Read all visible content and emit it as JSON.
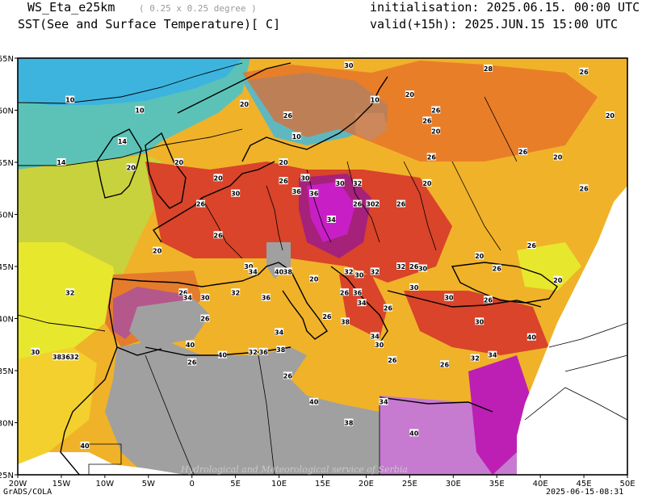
{
  "header": {
    "model": "WS_Eta_e25km",
    "resolution": "( 0.25 x 0.25 degree )",
    "field": "SST(See and Surface Temperature)[ C]",
    "init": "initialisation: 2025.06.15. 00:00 UTC",
    "valid": "valid(+15h): 2025.JUN.15 15:00 UTC"
  },
  "footer": {
    "left": "GrADS/COLA",
    "right": "2025-06-15-08:31",
    "watermark": "Hydrological and Meteorological service of Serbia"
  },
  "axes": {
    "lon_ticks": [
      "20W",
      "15W",
      "10W",
      "5W",
      "0",
      "5E",
      "10E",
      "15E",
      "20E",
      "25E",
      "30E",
      "35E",
      "40E",
      "45E",
      "50E"
    ],
    "lat_ticks": [
      "65N",
      "60N",
      "55N",
      "50N",
      "45N",
      "40N",
      "35N",
      "30N",
      "25N"
    ]
  },
  "contour_labels": [
    {
      "text": "10",
      "lon": -14,
      "lat": 61
    },
    {
      "text": "10",
      "lon": -6,
      "lat": 60
    },
    {
      "text": "14",
      "lon": -15,
      "lat": 55
    },
    {
      "text": "14",
      "lon": -8,
      "lat": 57
    },
    {
      "text": "20",
      "lon": -7,
      "lat": 54.5
    },
    {
      "text": "20",
      "lon": -1.5,
      "lat": 55
    },
    {
      "text": "20",
      "lon": 3,
      "lat": 53.5
    },
    {
      "text": "20",
      "lon": -4,
      "lat": 46.5
    },
    {
      "text": "26",
      "lon": 1,
      "lat": 51
    },
    {
      "text": "30",
      "lon": 5,
      "lat": 52
    },
    {
      "text": "26",
      "lon": 3,
      "lat": 48
    },
    {
      "text": "20",
      "lon": -20,
      "lat": 38
    },
    {
      "text": "30",
      "lon": -18,
      "lat": 36.8
    },
    {
      "text": "32",
      "lon": -14,
      "lat": 42.5
    },
    {
      "text": "26",
      "lon": -1,
      "lat": 42.5
    },
    {
      "text": "34",
      "lon": -0.5,
      "lat": 42
    },
    {
      "text": "30",
      "lon": 1.5,
      "lat": 42
    },
    {
      "text": "26",
      "lon": 1.5,
      "lat": 40
    },
    {
      "text": "40",
      "lon": -0.2,
      "lat": 37.5
    },
    {
      "text": "38",
      "lon": -15.5,
      "lat": 36.3
    },
    {
      "text": "36",
      "lon": -14.5,
      "lat": 36.3
    },
    {
      "text": "32",
      "lon": -13.5,
      "lat": 36.3
    },
    {
      "text": "26",
      "lon": 0,
      "lat": 35.8
    },
    {
      "text": "40",
      "lon": 3.5,
      "lat": 36.5
    },
    {
      "text": "32",
      "lon": 7,
      "lat": 36.8
    },
    {
      "text": "36",
      "lon": 8.2,
      "lat": 36.8
    },
    {
      "text": "38",
      "lon": 10.2,
      "lat": 37
    },
    {
      "text": "40",
      "lon": -12.3,
      "lat": 27.8
    },
    {
      "text": "26",
      "lon": 11,
      "lat": 34.5
    },
    {
      "text": "40",
      "lon": 14,
      "lat": 32
    },
    {
      "text": "34",
      "lon": 22,
      "lat": 32
    },
    {
      "text": "38",
      "lon": 18,
      "lat": 30
    },
    {
      "text": "40",
      "lon": 25.5,
      "lat": 29
    },
    {
      "text": "34",
      "lon": 10,
      "lat": 38.7
    },
    {
      "text": "26",
      "lon": 15.5,
      "lat": 40.2
    },
    {
      "text": "38",
      "lon": 17.6,
      "lat": 39.7
    },
    {
      "text": "36",
      "lon": 8.5,
      "lat": 42
    },
    {
      "text": "32",
      "lon": 5,
      "lat": 42.5
    },
    {
      "text": "30",
      "lon": 6.5,
      "lat": 45
    },
    {
      "text": "34",
      "lon": 7,
      "lat": 44.5
    },
    {
      "text": "40",
      "lon": 10,
      "lat": 44.5
    },
    {
      "text": "38",
      "lon": 11,
      "lat": 44.5
    },
    {
      "text": "20",
      "lon": 14,
      "lat": 43.8
    },
    {
      "text": "26",
      "lon": 17.5,
      "lat": 42.5
    },
    {
      "text": "36",
      "lon": 19,
      "lat": 42.5
    },
    {
      "text": "32",
      "lon": 18,
      "lat": 44.5
    },
    {
      "text": "30",
      "lon": 19.2,
      "lat": 44.2
    },
    {
      "text": "32",
      "lon": 21,
      "lat": 44.5
    },
    {
      "text": "32",
      "lon": 24,
      "lat": 45
    },
    {
      "text": "26",
      "lon": 25.5,
      "lat": 45
    },
    {
      "text": "30",
      "lon": 26.5,
      "lat": 44.8
    },
    {
      "text": "30",
      "lon": 25.5,
      "lat": 43
    },
    {
      "text": "26",
      "lon": 22.5,
      "lat": 41
    },
    {
      "text": "34",
      "lon": 19.5,
      "lat": 41.5
    },
    {
      "text": "34",
      "lon": 21,
      "lat": 38.3
    },
    {
      "text": "30",
      "lon": 21.5,
      "lat": 37.5
    },
    {
      "text": "26",
      "lon": 23,
      "lat": 36
    },
    {
      "text": "26",
      "lon": 29,
      "lat": 35.6
    },
    {
      "text": "32",
      "lon": 32.5,
      "lat": 36.2
    },
    {
      "text": "34",
      "lon": 34.5,
      "lat": 36.5
    },
    {
      "text": "40",
      "lon": 39,
      "lat": 38.2
    },
    {
      "text": "30",
      "lon": 33,
      "lat": 39.7
    },
    {
      "text": "26",
      "lon": 34,
      "lat": 41.8
    },
    {
      "text": "20",
      "lon": 42,
      "lat": 43.7
    },
    {
      "text": "30",
      "lon": 29.5,
      "lat": 42
    },
    {
      "text": "26",
      "lon": 35,
      "lat": 44.8
    },
    {
      "text": "20",
      "lon": 33,
      "lat": 46
    },
    {
      "text": "26",
      "lon": 19,
      "lat": 51
    },
    {
      "text": "30",
      "lon": 17,
      "lat": 53
    },
    {
      "text": "32",
      "lon": 21,
      "lat": 51
    },
    {
      "text": "30",
      "lon": 20.5,
      "lat": 51
    },
    {
      "text": "34",
      "lon": 16,
      "lat": 49.5
    },
    {
      "text": "36",
      "lon": 14,
      "lat": 52
    },
    {
      "text": "30",
      "lon": 13,
      "lat": 53.5
    },
    {
      "text": "26",
      "lon": 24,
      "lat": 51
    },
    {
      "text": "20",
      "lon": 27,
      "lat": 53
    },
    {
      "text": "26",
      "lon": 27.5,
      "lat": 55.5
    },
    {
      "text": "20",
      "lon": 28,
      "lat": 58
    },
    {
      "text": "26",
      "lon": 27,
      "lat": 59
    },
    {
      "text": "10",
      "lon": 21,
      "lat": 61
    },
    {
      "text": "20",
      "lon": 25,
      "lat": 61.5
    },
    {
      "text": "26",
      "lon": 28,
      "lat": 60
    },
    {
      "text": "30",
      "lon": 18,
      "lat": 64.3
    },
    {
      "text": "28",
      "lon": 34,
      "lat": 64
    },
    {
      "text": "26",
      "lon": 45,
      "lat": 63.7
    },
    {
      "text": "20",
      "lon": 48,
      "lat": 59.5
    },
    {
      "text": "20",
      "lon": 42,
      "lat": 55.5
    },
    {
      "text": "26",
      "lon": 38,
      "lat": 56
    },
    {
      "text": "26",
      "lon": 45,
      "lat": 52.5
    },
    {
      "text": "26",
      "lon": 39,
      "lat": 47
    },
    {
      "text": "20",
      "lon": 6,
      "lat": 60.6
    },
    {
      "text": "26",
      "lon": 11,
      "lat": 59.5
    },
    {
      "text": "10",
      "lon": 12,
      "lat": 57.5
    },
    {
      "text": "20",
      "lon": 10.5,
      "lat": 55
    },
    {
      "text": "26",
      "lon": 10.5,
      "lat": 53.2
    },
    {
      "text": "36",
      "lon": 12,
      "lat": 52.2
    },
    {
      "text": "32",
      "lon": 19,
      "lat": 53
    }
  ]
}
